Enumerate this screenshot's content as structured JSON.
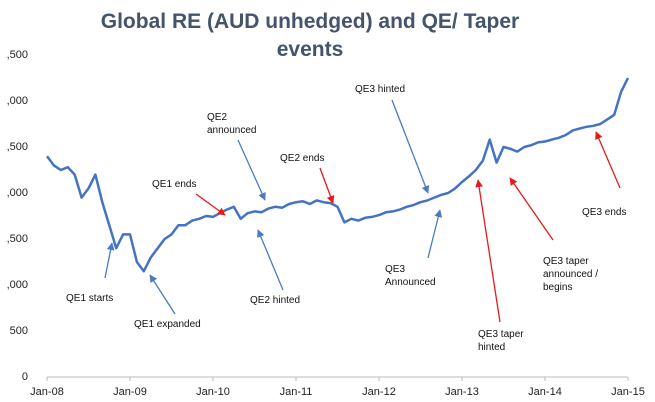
{
  "chart_data": {
    "type": "line",
    "title": "Global RE (AUD unhedged) and QE/ Taper events",
    "x": [
      "2008-01",
      "2008-02",
      "2008-03",
      "2008-04",
      "2008-05",
      "2008-06",
      "2008-07",
      "2008-08",
      "2008-09",
      "2008-10",
      "2008-11",
      "2008-12",
      "2009-01",
      "2009-02",
      "2009-03",
      "2009-04",
      "2009-05",
      "2009-06",
      "2009-07",
      "2009-08",
      "2009-09",
      "2009-10",
      "2009-11",
      "2009-12",
      "2010-01",
      "2010-02",
      "2010-03",
      "2010-04",
      "2010-05",
      "2010-06",
      "2010-07",
      "2010-08",
      "2010-09",
      "2010-10",
      "2010-11",
      "2010-12",
      "2011-01",
      "2011-02",
      "2011-03",
      "2011-04",
      "2011-05",
      "2011-06",
      "2011-07",
      "2011-08",
      "2011-09",
      "2011-10",
      "2011-11",
      "2011-12",
      "2012-01",
      "2012-02",
      "2012-03",
      "2012-04",
      "2012-05",
      "2012-06",
      "2012-07",
      "2012-08",
      "2012-09",
      "2012-10",
      "2012-11",
      "2012-12",
      "2013-01",
      "2013-02",
      "2013-03",
      "2013-04",
      "2013-05",
      "2013-06",
      "2013-07",
      "2013-08",
      "2013-09",
      "2013-10",
      "2013-11",
      "2013-12",
      "2014-01",
      "2014-02",
      "2014-03",
      "2014-04",
      "2014-05",
      "2014-06",
      "2014-07",
      "2014-08",
      "2014-09",
      "2014-10",
      "2014-11",
      "2014-12",
      "2015-01"
    ],
    "series": [
      {
        "name": "Global RE (AUD unhedged)",
        "color": "#4472c4",
        "values": [
          2400,
          2300,
          2250,
          2280,
          2200,
          1950,
          2050,
          2200,
          1900,
          1650,
          1400,
          1550,
          1550,
          1250,
          1150,
          1300,
          1400,
          1500,
          1550,
          1650,
          1650,
          1700,
          1720,
          1750,
          1740,
          1780,
          1820,
          1850,
          1720,
          1780,
          1800,
          1790,
          1830,
          1850,
          1840,
          1880,
          1900,
          1910,
          1880,
          1920,
          1900,
          1890,
          1850,
          1680,
          1720,
          1700,
          1730,
          1740,
          1760,
          1790,
          1800,
          1820,
          1850,
          1870,
          1900,
          1920,
          1950,
          1980,
          2000,
          2050,
          2120,
          2180,
          2250,
          2350,
          2580,
          2330,
          2500,
          2480,
          2450,
          2500,
          2520,
          2550,
          2560,
          2580,
          2600,
          2630,
          2680,
          2700,
          2720,
          2730,
          2750,
          2800,
          2850,
          3100,
          3250
        ]
      }
    ],
    "ylim": [
      0,
      3500
    ],
    "yticks": [
      0,
      500,
      {
        "value": 1000,
        "label": ",000"
      },
      {
        "value": 1500,
        "label": ",500"
      },
      {
        "value": 2000,
        "label": ",000"
      },
      {
        "value": 2500,
        "label": ",500"
      },
      {
        "value": 3000,
        "label": ",000"
      },
      {
        "value": 3500,
        "label": ",500"
      }
    ],
    "xticks": [
      {
        "value": "2008-01",
        "label": "Jan-08"
      },
      {
        "value": "2009-01",
        "label": "Jan-09"
      },
      {
        "value": "2010-01",
        "label": "Jan-10"
      },
      {
        "value": "2011-01",
        "label": "Jan-11"
      },
      {
        "value": "2012-01",
        "label": "Jan-12"
      },
      {
        "value": "2013-01",
        "label": "Jan-13"
      },
      {
        "value": "2014-01",
        "label": "Jan-14"
      },
      {
        "value": "2015-01",
        "label": "Jan-15"
      }
    ],
    "annotations": [
      "QE1 starts",
      "QE1 expanded",
      "QE1 ends",
      "QE2 announced",
      "QE2 hinted",
      "QE2 ends",
      "QE3 hinted",
      "QE3 Announced",
      "QE3 taper hinted",
      "QE3 taper announced / begins",
      "QE3 ends"
    ]
  }
}
